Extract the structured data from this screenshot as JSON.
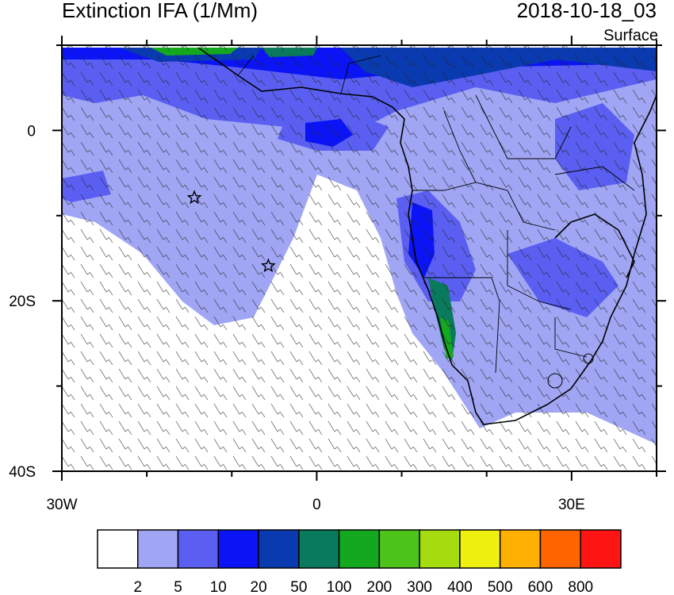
{
  "header": {
    "title": "Extinction IFA (1/Mm)",
    "timestamp": "2018-10-18_03",
    "level": "Surface"
  },
  "map": {
    "region": "Southern Africa / South Atlantic",
    "lon_range": [
      -30,
      40
    ],
    "lat_range": [
      -40,
      10
    ],
    "x_ticks": [
      {
        "value": -30,
        "label": "30W"
      },
      {
        "value": 0,
        "label": "0"
      },
      {
        "value": 30,
        "label": "30E"
      }
    ],
    "y_ticks": [
      {
        "value": 0,
        "label": "0"
      },
      {
        "value": -20,
        "label": "20S"
      },
      {
        "value": -40,
        "label": "40S"
      }
    ],
    "markers": [
      {
        "name": "star-marker-ascension",
        "lon": -14.4,
        "lat": -7.9
      },
      {
        "name": "star-marker-st-helena",
        "lon": -5.7,
        "lat": -15.9
      }
    ],
    "overlay": "wind-barbs"
  },
  "colorbar": {
    "labels": [
      "2",
      "5",
      "10",
      "20",
      "50",
      "100",
      "200",
      "300",
      "400",
      "500",
      "600",
      "800"
    ],
    "colors": [
      "#ffffff",
      "#a0a6f4",
      "#5a5ff2",
      "#0a14f5",
      "#0a3ab0",
      "#0a7a5c",
      "#14a81f",
      "#4cc41a",
      "#a4dc10",
      "#f0f010",
      "#ffb000",
      "#ff6400",
      "#ff1414"
    ]
  }
}
